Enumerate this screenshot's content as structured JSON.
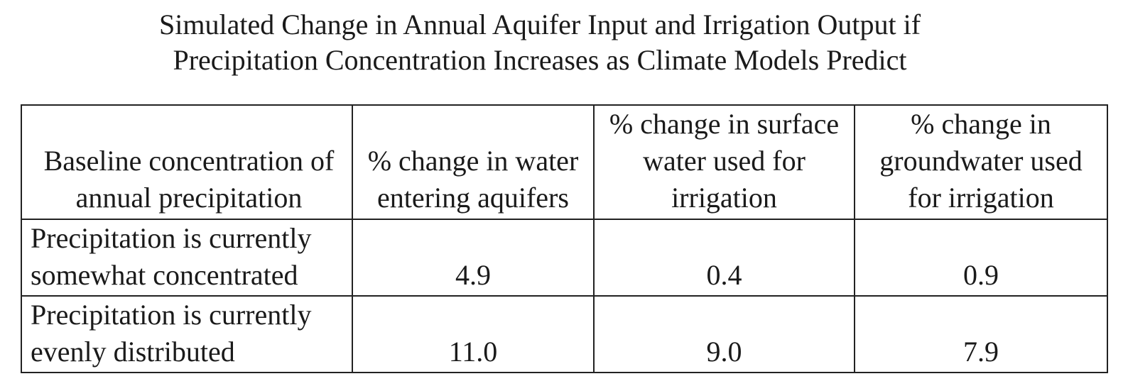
{
  "chart_data": {
    "type": "table",
    "title": "Simulated Change in Annual Aquifer Input and Irrigation Output if Precipitation Concentration Increases as Climate Models Predict",
    "title_lines": [
      "Simulated Change in Annual Aquifer Input and Irrigation Output if",
      "Precipitation Concentration Increases as Climate Models Predict"
    ],
    "columns": [
      {
        "lines": [
          "Baseline concentration of",
          "annual precipitation"
        ]
      },
      {
        "lines": [
          "% change in water",
          "entering aquifers"
        ]
      },
      {
        "lines": [
          "% change in surface",
          "water used for",
          "irrigation"
        ]
      },
      {
        "lines": [
          "% change in",
          "groundwater used",
          "for irrigation"
        ]
      }
    ],
    "rows": [
      {
        "label_lines": [
          "Precipitation is currently",
          "somewhat concentrated"
        ],
        "values": [
          "4.9",
          "0.4",
          "0.9"
        ]
      },
      {
        "label_lines": [
          "Precipitation is currently",
          "evenly distributed"
        ],
        "values": [
          "11.0",
          "9.0",
          "7.9"
        ]
      }
    ]
  }
}
